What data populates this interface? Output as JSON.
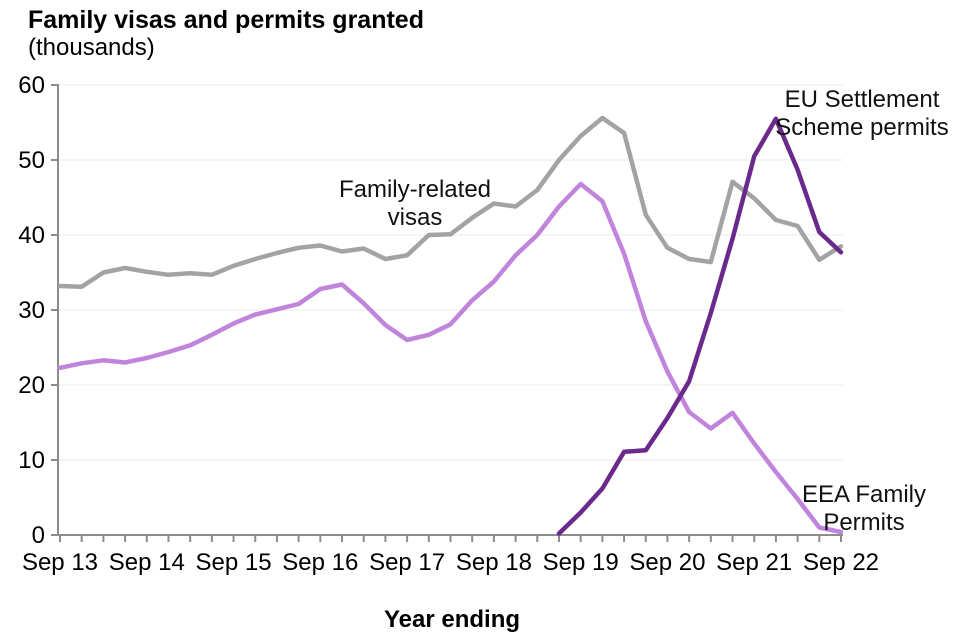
{
  "header": {
    "title": "Family visas and permits granted",
    "subtitle": "(thousands)"
  },
  "x_axis_title": "Year ending",
  "annotations": {
    "family_visas": {
      "line1": "Family-related",
      "line2": "visas"
    },
    "ess": {
      "line1": "EU Settlement",
      "line2": "Scheme permits"
    },
    "eea": {
      "line1": "EEA Family",
      "line2": "Permits"
    }
  },
  "colors": {
    "family_visas": "#a3a3a3",
    "eea_permits": "#c184dc",
    "ess_permits": "#6a2a8b",
    "gridline": "#f2f2f2",
    "axis": "#8c8c8c",
    "text": "#000000"
  },
  "chart_data": {
    "type": "line",
    "title": "Family visas and permits granted (thousands)",
    "xlabel": "Year ending",
    "ylabel": "thousands",
    "ylim": [
      0,
      60
    ],
    "yticks": [
      0,
      10,
      20,
      30,
      40,
      50,
      60
    ],
    "grid": true,
    "legend": "labels placed directly next to lines",
    "x_labeled_ticks": [
      "Sep 13",
      "Sep 14",
      "Sep 15",
      "Sep 16",
      "Sep 17",
      "Sep 18",
      "Sep 19",
      "Sep 20",
      "Sep 21",
      "Sep 22"
    ],
    "categories": [
      "Sep 13",
      "Dec 13",
      "Mar 14",
      "Jun 14",
      "Sep 14",
      "Dec 14",
      "Mar 15",
      "Jun 15",
      "Sep 15",
      "Dec 15",
      "Mar 16",
      "Jun 16",
      "Sep 16",
      "Dec 16",
      "Mar 17",
      "Jun 17",
      "Sep 17",
      "Dec 17",
      "Mar 18",
      "Jun 18",
      "Sep 18",
      "Dec 18",
      "Mar 19",
      "Jun 19",
      "Sep 19",
      "Dec 19",
      "Mar 20",
      "Jun 20",
      "Sep 20",
      "Dec 20",
      "Mar 21",
      "Jun 21",
      "Sep 21",
      "Dec 21",
      "Mar 22",
      "Jun 22",
      "Sep 22"
    ],
    "series": [
      {
        "name": "Family-related visas",
        "color_key": "family_visas",
        "values": [
          33.2,
          33.1,
          35.0,
          35.6,
          35.1,
          34.7,
          34.9,
          34.7,
          35.9,
          36.8,
          37.6,
          38.3,
          38.6,
          37.8,
          38.2,
          36.8,
          37.3,
          40.0,
          40.1,
          42.3,
          44.2,
          43.8,
          46.0,
          50.0,
          53.2,
          55.6,
          53.6,
          42.7,
          38.3,
          36.8,
          36.4,
          47.1,
          44.9,
          42.0,
          41.2,
          36.7,
          38.5
        ]
      },
      {
        "name": "EEA Family Permits",
        "color_key": "eea_permits",
        "values": [
          22.3,
          22.9,
          23.3,
          23.0,
          23.6,
          24.4,
          25.3,
          26.7,
          28.2,
          29.4,
          30.1,
          30.8,
          32.8,
          33.4,
          30.9,
          28.0,
          26.0,
          26.7,
          28.1,
          31.3,
          33.8,
          37.3,
          40.0,
          43.8,
          46.8,
          44.5,
          37.5,
          28.5,
          21.8,
          16.4,
          14.2,
          16.3,
          12.2,
          8.4,
          4.8,
          1.0,
          0.4
        ]
      },
      {
        "name": "EU Settlement Scheme permits",
        "color_key": "ess_permits",
        "values": [
          null,
          null,
          null,
          null,
          null,
          null,
          null,
          null,
          null,
          null,
          null,
          null,
          null,
          null,
          null,
          null,
          null,
          null,
          null,
          null,
          null,
          null,
          null,
          0.2,
          3.0,
          6.2,
          11.1,
          11.3,
          15.6,
          20.5,
          29.6,
          39.5,
          50.5,
          55.5,
          48.7,
          40.4,
          37.7
        ]
      }
    ]
  }
}
